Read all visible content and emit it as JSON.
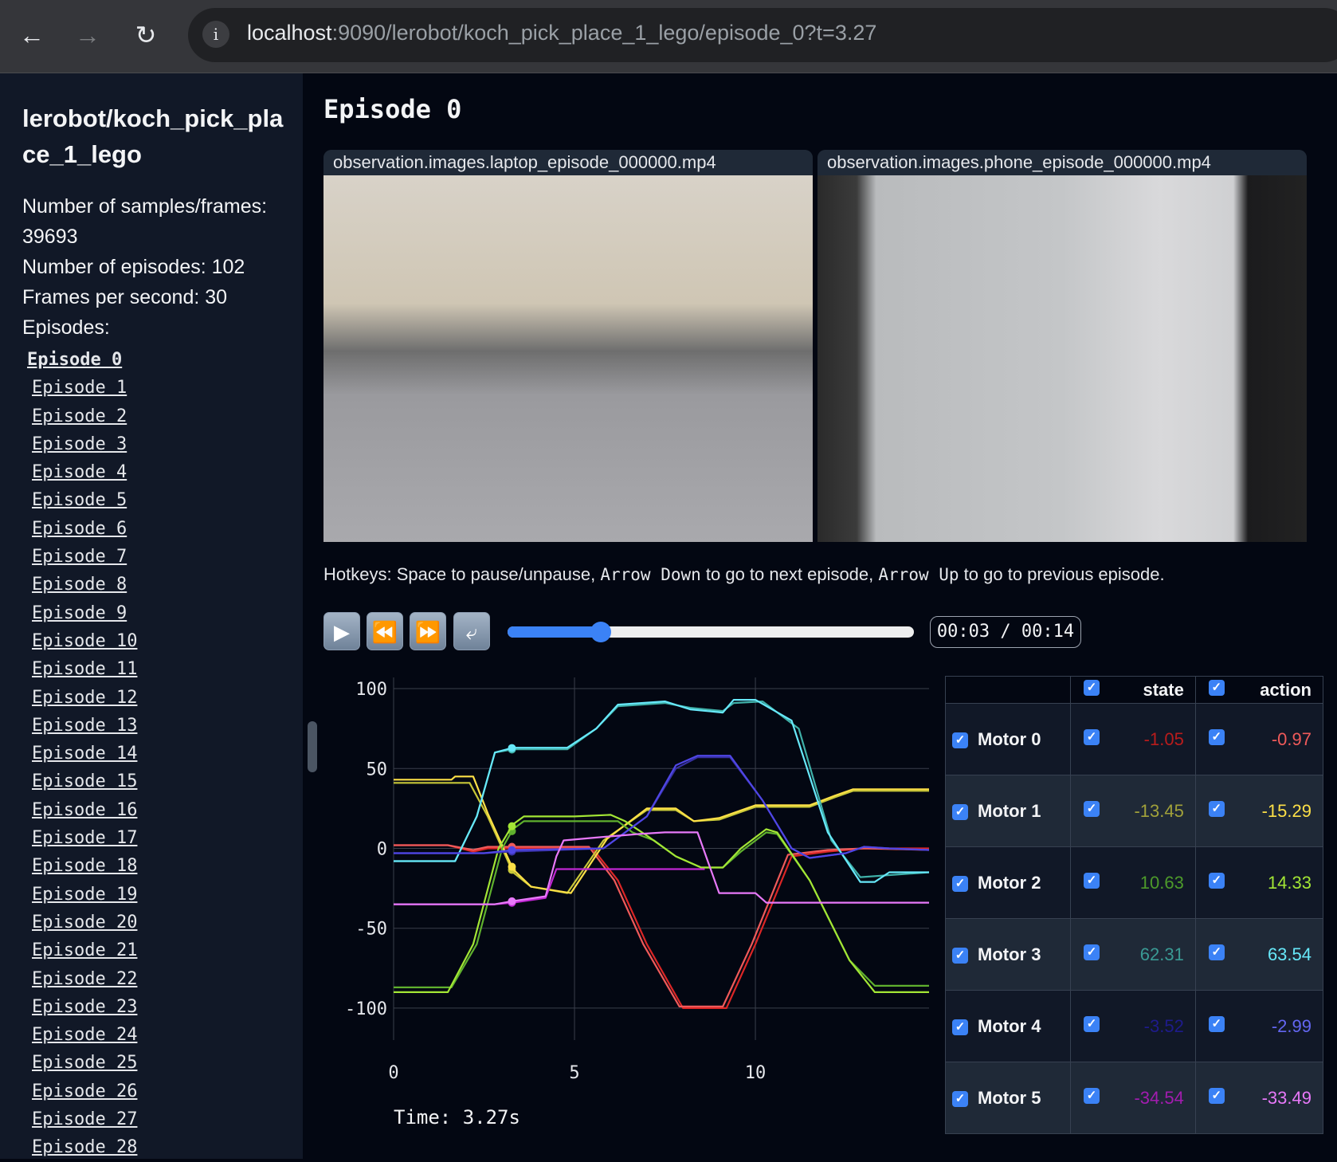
{
  "browser": {
    "url_host": "localhost",
    "url_rest": ":9090/lerobot/koch_pick_place_1_lego/episode_0?t=3.27",
    "back_icon": "arrow-left",
    "forward_icon": "arrow-right",
    "reload_icon": "reload",
    "info_icon": "info"
  },
  "sidebar": {
    "title": "lerobot/koch_pick_place_1_lego",
    "stats": [
      "Number of samples/frames: 39693",
      "Number of episodes: 102",
      "Frames per second: 30",
      "Episodes:"
    ],
    "episodes": [
      "Episode 0",
      "Episode 1",
      "Episode 2",
      "Episode 3",
      "Episode 4",
      "Episode 5",
      "Episode 6",
      "Episode 7",
      "Episode 8",
      "Episode 9",
      "Episode 10",
      "Episode 11",
      "Episode 12",
      "Episode 13",
      "Episode 14",
      "Episode 15",
      "Episode 16",
      "Episode 17",
      "Episode 18",
      "Episode 19",
      "Episode 20",
      "Episode 21",
      "Episode 22",
      "Episode 23",
      "Episode 24",
      "Episode 25",
      "Episode 26",
      "Episode 27",
      "Episode 28"
    ],
    "active_episode": 0
  },
  "main": {
    "title": "Episode 0",
    "videos": [
      {
        "name": "observation.images.laptop_episode_000000.mp4"
      },
      {
        "name": "observation.images.phone_episode_000000.mp4"
      }
    ],
    "hotkeys": {
      "t1": "Hotkeys: Space to pause/unpause, ",
      "k1": "Arrow Down",
      "t2": " to go to next episode, ",
      "k2": "Arrow Up",
      "t3": " to go to previous episode."
    },
    "controls": {
      "play_icon": "play",
      "rewind_icon": "rewind",
      "fastforward_icon": "fast-forward",
      "loop_icon": "loop",
      "progress_percent": 23,
      "time_display": "00:03 / 00:14"
    },
    "time_readout": "Time: 3.27s"
  },
  "table": {
    "header": {
      "state": "state",
      "action": "action"
    },
    "rows": [
      {
        "name": "Motor 0",
        "state": "-1.05",
        "action": "-0.97",
        "state_color": "#b91c1c",
        "action_color": "#f05a5a"
      },
      {
        "name": "Motor 1",
        "state": "-13.45",
        "action": "-15.29",
        "state_color": "#a1a13a",
        "action_color": "#fde047"
      },
      {
        "name": "Motor 2",
        "state": "10.63",
        "action": "14.33",
        "state_color": "#4d9a2a",
        "action_color": "#a3e635"
      },
      {
        "name": "Motor 3",
        "state": "62.31",
        "action": "63.54",
        "state_color": "#3a9a94",
        "action_color": "#67e8f9"
      },
      {
        "name": "Motor 4",
        "state": "-3.52",
        "action": "-2.99",
        "state_color": "#1e1b8b",
        "action_color": "#6366f1"
      },
      {
        "name": "Motor 5",
        "state": "-34.54",
        "action": "-33.49",
        "state_color": "#a21caf",
        "action_color": "#e879f9"
      }
    ]
  },
  "chart_data": {
    "type": "line",
    "xlim": [
      0,
      14.8
    ],
    "ylim": [
      -120,
      112
    ],
    "xticks": [
      "0",
      "5",
      "10"
    ],
    "yticks": [
      "100",
      "50",
      "0",
      "-50",
      "-100"
    ],
    "grid": true,
    "cursor_x": 3.27,
    "series": [
      {
        "motor": 0,
        "kind": "state",
        "color": "#dc2626",
        "points": [
          [
            0,
            2
          ],
          [
            1.5,
            2
          ],
          [
            2.2,
            -2
          ],
          [
            2.6,
            0
          ],
          [
            5.5,
            0
          ],
          [
            6.2,
            -20
          ],
          [
            7.0,
            -60
          ],
          [
            8.0,
            -100
          ],
          [
            9.2,
            -100
          ],
          [
            10.0,
            -60
          ],
          [
            11.0,
            -5
          ],
          [
            12,
            -2
          ],
          [
            13,
            0
          ],
          [
            14.8,
            0
          ]
        ]
      },
      {
        "motor": 0,
        "kind": "action",
        "color": "#f05a5a",
        "points": [
          [
            0,
            2
          ],
          [
            1.5,
            2
          ],
          [
            2.2,
            -1
          ],
          [
            2.6,
            1
          ],
          [
            5.4,
            1
          ],
          [
            6.1,
            -20
          ],
          [
            6.9,
            -60
          ],
          [
            7.9,
            -99
          ],
          [
            9.1,
            -99
          ],
          [
            9.9,
            -60
          ],
          [
            10.9,
            -4
          ],
          [
            12,
            -1
          ],
          [
            13,
            0
          ],
          [
            14.8,
            -1
          ]
        ]
      },
      {
        "motor": 1,
        "kind": "state",
        "color": "#c7c738",
        "points": [
          [
            0,
            41
          ],
          [
            1.6,
            41
          ],
          [
            2.1,
            41
          ],
          [
            2.6,
            20
          ],
          [
            3.3,
            -15
          ],
          [
            3.8,
            -24
          ],
          [
            4.8,
            -28
          ],
          [
            5.8,
            5
          ],
          [
            7.0,
            24
          ],
          [
            7.8,
            24
          ],
          [
            8.3,
            17
          ],
          [
            9.0,
            18
          ],
          [
            10,
            26
          ],
          [
            11.5,
            26
          ],
          [
            12.2,
            32
          ],
          [
            12.7,
            36
          ],
          [
            14.8,
            36
          ]
        ]
      },
      {
        "motor": 1,
        "kind": "action",
        "color": "#fde047",
        "points": [
          [
            0,
            43
          ],
          [
            1.6,
            43
          ],
          [
            1.7,
            45
          ],
          [
            2.2,
            45
          ],
          [
            2.6,
            22
          ],
          [
            3.3,
            -13
          ],
          [
            3.8,
            -24
          ],
          [
            4.9,
            -28
          ],
          [
            5.9,
            6
          ],
          [
            7.0,
            25
          ],
          [
            7.8,
            25
          ],
          [
            8.3,
            17
          ],
          [
            9.0,
            19
          ],
          [
            10,
            27
          ],
          [
            11.5,
            27
          ],
          [
            12.2,
            33
          ],
          [
            12.7,
            37
          ],
          [
            14.8,
            37
          ]
        ]
      },
      {
        "motor": 2,
        "kind": "state",
        "color": "#5fb02e",
        "points": [
          [
            0,
            -87
          ],
          [
            1.6,
            -87
          ],
          [
            2.3,
            -60
          ],
          [
            3.0,
            0
          ],
          [
            3.3,
            12
          ],
          [
            3.6,
            17
          ],
          [
            5,
            17
          ],
          [
            6.2,
            17
          ],
          [
            6.6,
            10
          ],
          [
            7.2,
            5
          ],
          [
            7.8,
            -5
          ],
          [
            8.5,
            -12
          ],
          [
            9.1,
            -12
          ],
          [
            9.6,
            -2
          ],
          [
            10.3,
            10
          ],
          [
            10.6,
            9
          ],
          [
            11.5,
            -20
          ],
          [
            12.6,
            -70
          ],
          [
            13.3,
            -86
          ],
          [
            14.8,
            -86
          ]
        ]
      },
      {
        "motor": 2,
        "kind": "action",
        "color": "#a3e635",
        "points": [
          [
            0,
            -90
          ],
          [
            1.5,
            -90
          ],
          [
            2.2,
            -60
          ],
          [
            2.9,
            0
          ],
          [
            3.3,
            15
          ],
          [
            3.6,
            20
          ],
          [
            5,
            20
          ],
          [
            6.0,
            21
          ],
          [
            6.4,
            17
          ],
          [
            7,
            8
          ],
          [
            7.8,
            -5
          ],
          [
            8.5,
            -12
          ],
          [
            9.1,
            -12
          ],
          [
            9.6,
            0
          ],
          [
            10.3,
            12
          ],
          [
            10.6,
            10
          ],
          [
            11.5,
            -20
          ],
          [
            12.6,
            -70
          ],
          [
            13.3,
            -90
          ],
          [
            14.8,
            -90
          ]
        ]
      },
      {
        "motor": 3,
        "kind": "state",
        "color": "#3fb0a8",
        "points": [
          [
            0,
            -8
          ],
          [
            1.7,
            -8
          ],
          [
            2.3,
            20
          ],
          [
            2.8,
            60
          ],
          [
            3.3,
            62
          ],
          [
            4.8,
            62
          ],
          [
            5.6,
            75
          ],
          [
            6.2,
            89
          ],
          [
            7.5,
            91
          ],
          [
            8.2,
            88
          ],
          [
            9.1,
            86
          ],
          [
            9.4,
            91
          ],
          [
            10.2,
            92
          ],
          [
            11.2,
            75
          ],
          [
            12.1,
            5
          ],
          [
            12.9,
            -18
          ],
          [
            14.8,
            -15
          ]
        ]
      },
      {
        "motor": 3,
        "kind": "action",
        "color": "#67e8f9",
        "points": [
          [
            0,
            -8
          ],
          [
            1.7,
            -8
          ],
          [
            2.3,
            20
          ],
          [
            2.8,
            60
          ],
          [
            3.3,
            63
          ],
          [
            4.8,
            63
          ],
          [
            5.6,
            75
          ],
          [
            6.2,
            90
          ],
          [
            7.5,
            92
          ],
          [
            8.2,
            87
          ],
          [
            9.1,
            85
          ],
          [
            9.4,
            93
          ],
          [
            10,
            93
          ],
          [
            11,
            80
          ],
          [
            12,
            10
          ],
          [
            12.9,
            -21
          ],
          [
            13.3,
            -21
          ],
          [
            13.7,
            -15
          ],
          [
            14.8,
            -15
          ]
        ]
      },
      {
        "motor": 4,
        "kind": "state",
        "color": "#3730a3",
        "points": [
          [
            0,
            -3
          ],
          [
            2.5,
            -3
          ],
          [
            3.3,
            -2
          ],
          [
            5.8,
            0
          ],
          [
            7.0,
            20
          ],
          [
            7.8,
            50
          ],
          [
            8.4,
            57
          ],
          [
            9.3,
            57
          ],
          [
            10.2,
            30
          ],
          [
            11.0,
            0
          ],
          [
            11.5,
            -6
          ],
          [
            12.5,
            -3
          ],
          [
            13,
            1
          ],
          [
            13.7,
            0
          ],
          [
            14.8,
            -1
          ]
        ]
      },
      {
        "motor": 4,
        "kind": "action",
        "color": "#4f46e5",
        "points": [
          [
            0,
            -3
          ],
          [
            2.5,
            -3
          ],
          [
            3.3,
            -1
          ],
          [
            5.8,
            0
          ],
          [
            7.0,
            20
          ],
          [
            7.8,
            52
          ],
          [
            8.4,
            58
          ],
          [
            9.3,
            58
          ],
          [
            10.2,
            30
          ],
          [
            11.0,
            0
          ],
          [
            11.5,
            -6
          ],
          [
            12.5,
            -3
          ],
          [
            13,
            1
          ],
          [
            13.7,
            0
          ],
          [
            14.8,
            -1
          ]
        ]
      },
      {
        "motor": 5,
        "kind": "state",
        "color": "#c026d3",
        "points": [
          [
            0,
            -35
          ],
          [
            2.8,
            -35
          ],
          [
            3.3,
            -34
          ],
          [
            4.2,
            -31
          ],
          [
            4.5,
            -13
          ],
          [
            8.6,
            -13
          ]
        ]
      },
      {
        "motor": 5,
        "kind": "action",
        "color": "#e879f9",
        "points": [
          [
            0,
            -35
          ],
          [
            2.8,
            -35
          ],
          [
            3.3,
            -33
          ],
          [
            4.2,
            -30
          ],
          [
            4.5,
            -5
          ],
          [
            4.7,
            5
          ],
          [
            5.7,
            7
          ],
          [
            6.8,
            9
          ],
          [
            7.5,
            10
          ],
          [
            8.4,
            10
          ],
          [
            9.0,
            -28
          ],
          [
            10.0,
            -28
          ],
          [
            10.3,
            -34
          ],
          [
            14.8,
            -34
          ]
        ]
      }
    ]
  }
}
